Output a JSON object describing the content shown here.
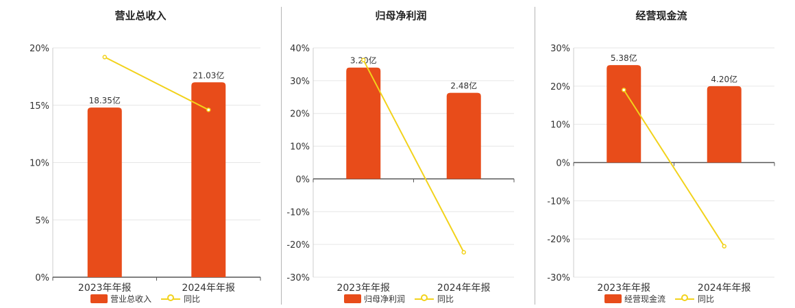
{
  "colors": {
    "bar": "#e84c1a",
    "line": "#f2d21b",
    "grid": "#e6e6e6",
    "axis": "#555555",
    "text": "#333333"
  },
  "chart_data": [
    {
      "type": "bar",
      "title": "营业总收入",
      "categories": [
        "2023年年报",
        "2024年年报"
      ],
      "series": [
        {
          "name": "营业总收入",
          "type": "bar",
          "values": [
            14.8,
            17.0
          ],
          "labels": [
            "18.35亿",
            "21.03亿"
          ]
        },
        {
          "name": "同比",
          "type": "line",
          "values": [
            19.2,
            14.6
          ]
        }
      ],
      "yticks": [
        0,
        5,
        10,
        15,
        20
      ],
      "ytick_labels": [
        "0%",
        "5%",
        "10%",
        "15%",
        "20%"
      ],
      "ylim": [
        0,
        20
      ],
      "grid": true,
      "legend": "bottom"
    },
    {
      "type": "bar",
      "title": "归母净利润",
      "categories": [
        "2023年年报",
        "2024年年报"
      ],
      "series": [
        {
          "name": "归母净利润",
          "type": "bar",
          "values": [
            34.0,
            26.3
          ],
          "labels": [
            "3.20亿",
            "2.48亿"
          ]
        },
        {
          "name": "同比",
          "type": "line",
          "values": [
            36.3,
            -22.4
          ]
        }
      ],
      "yticks": [
        -30,
        -20,
        -10,
        0,
        10,
        20,
        30,
        40
      ],
      "ytick_labels": [
        "-30%",
        "-20%",
        "-10%",
        "0%",
        "10%",
        "20%",
        "30%",
        "40%"
      ],
      "ylim": [
        -30,
        40
      ],
      "grid": true,
      "legend": "bottom"
    },
    {
      "type": "bar",
      "title": "经营现金流",
      "categories": [
        "2023年年报",
        "2024年年报"
      ],
      "series": [
        {
          "name": "经营现金流",
          "type": "bar",
          "values": [
            25.5,
            20.0
          ],
          "labels": [
            "5.38亿",
            "4.20亿"
          ]
        },
        {
          "name": "同比",
          "type": "line",
          "values": [
            19.0,
            -21.9
          ]
        }
      ],
      "yticks": [
        -30,
        -20,
        -10,
        0,
        10,
        20,
        30
      ],
      "ytick_labels": [
        "-30%",
        "-20%",
        "-10%",
        "0%",
        "10%",
        "20%",
        "30%"
      ],
      "ylim": [
        -30,
        30
      ],
      "grid": true,
      "legend": "bottom"
    }
  ]
}
